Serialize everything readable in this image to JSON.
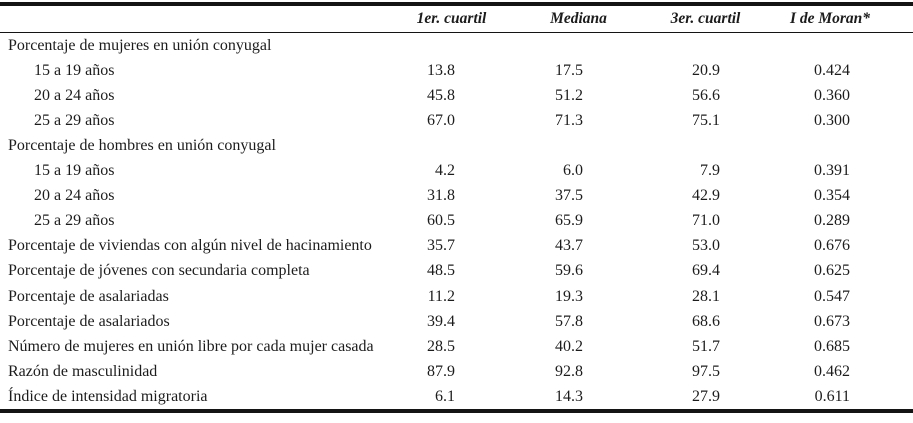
{
  "colors": {
    "text": "#1c1c1c",
    "rule": "#141414",
    "background": "#ffffff"
  },
  "table": {
    "corner_label": "",
    "columns": [
      "1er. cuartil",
      "Mediana",
      "3er. cuartil",
      "I de Moran*"
    ],
    "rows": [
      {
        "label": "Porcentaje de mujeres en unión conyugal",
        "indent": false,
        "values": null
      },
      {
        "label": "15 a 19 años",
        "indent": true,
        "values": [
          "13.8",
          "17.5",
          "20.9",
          "0.424"
        ]
      },
      {
        "label": "20 a 24 años",
        "indent": true,
        "values": [
          "45.8",
          "51.2",
          "56.6",
          "0.360"
        ]
      },
      {
        "label": "25 a 29 años",
        "indent": true,
        "values": [
          "67.0",
          "71.3",
          "75.1",
          "0.300"
        ]
      },
      {
        "label": "Porcentaje de hombres en unión conyugal",
        "indent": false,
        "values": null
      },
      {
        "label": "15 a 19 años",
        "indent": true,
        "values": [
          "4.2",
          "6.0",
          "7.9",
          "0.391"
        ]
      },
      {
        "label": "20 a 24 años",
        "indent": true,
        "values": [
          "31.8",
          "37.5",
          "42.9",
          "0.354"
        ]
      },
      {
        "label": "25 a 29 años",
        "indent": true,
        "values": [
          "60.5",
          "65.9",
          "71.0",
          "0.289"
        ]
      },
      {
        "label": "Porcentaje de viviendas con algún nivel de hacinamiento",
        "indent": false,
        "values": [
          "35.7",
          "43.7",
          "53.0",
          "0.676"
        ]
      },
      {
        "label": "Porcentaje de jóvenes con secundaria completa",
        "indent": false,
        "values": [
          "48.5",
          "59.6",
          "69.4",
          "0.625"
        ]
      },
      {
        "label": "Porcentaje de asalariadas",
        "indent": false,
        "values": [
          "11.2",
          "19.3",
          "28.1",
          "0.547"
        ]
      },
      {
        "label": "Porcentaje de asalariados",
        "indent": false,
        "values": [
          "39.4",
          "57.8",
          "68.6",
          "0.673"
        ]
      },
      {
        "label": "Número de mujeres en unión libre por cada mujer casada",
        "indent": false,
        "values": [
          "28.5",
          "40.2",
          "51.7",
          "0.685"
        ]
      },
      {
        "label": "Razón de masculinidad",
        "indent": false,
        "values": [
          "87.9",
          "92.8",
          "97.5",
          "0.462"
        ]
      },
      {
        "label": "Índice de intensidad migratoria",
        "indent": false,
        "values": [
          "6.1",
          "14.3",
          "27.9",
          "0.611"
        ]
      }
    ]
  }
}
